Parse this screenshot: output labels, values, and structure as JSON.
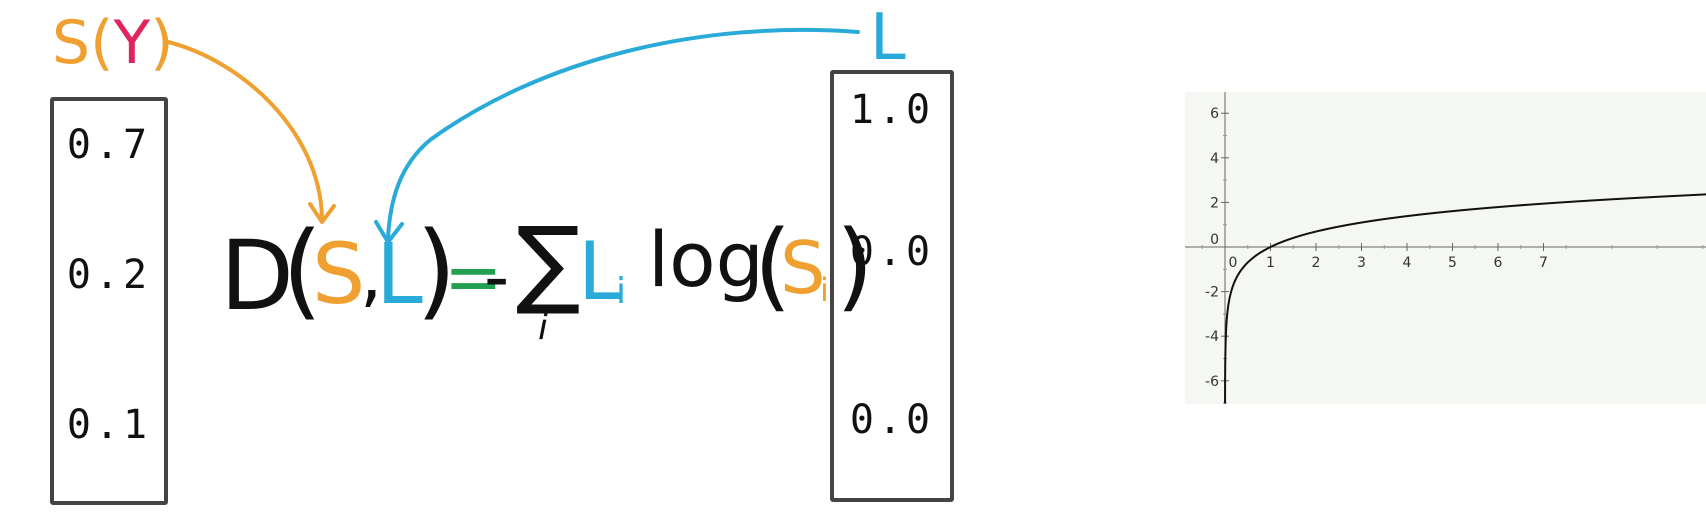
{
  "score_label": {
    "s": "S(",
    "y": "Y",
    "close": ")"
  },
  "label_label": "L",
  "score_values": [
    "0.7",
    "0.2",
    "0.1"
  ],
  "label_values": [
    "1.0",
    "0.0",
    "0.0"
  ],
  "formula": {
    "D": "D",
    "open": "(",
    "S": "S",
    "comma": ",",
    "L": "L",
    "close": ")",
    "equals": "=",
    "minus": "-",
    "sum": "∑",
    "sum_index": "i",
    "Li": "L",
    "Li_sub": "i",
    "log": "log",
    "log_open": "(",
    "Si": "S",
    "Si_sub": "i",
    "log_close": ")"
  },
  "colors": {
    "score": "#f0a030",
    "label": "#2aaad8",
    "y": "#e0245e",
    "equals": "#22a050",
    "ink": "#111111"
  },
  "chart_data": {
    "type": "line",
    "function": "ln(x)",
    "series": [
      {
        "x": [
          0.001,
          0.05,
          0.1,
          0.2,
          0.5,
          1,
          1.5,
          2,
          3,
          4,
          5,
          6,
          7,
          8
        ],
        "y": [
          -6.91,
          -3.0,
          -2.3,
          -1.61,
          -0.69,
          0,
          0.41,
          0.69,
          1.1,
          1.39,
          1.61,
          1.79,
          1.95,
          2.08
        ]
      }
    ],
    "xticks": [
      "0",
      "1",
      "2",
      "3",
      "4",
      "5",
      "6",
      "7"
    ],
    "yticks": [
      "6",
      "4",
      "2",
      "0",
      "-2",
      "-4",
      "-6"
    ],
    "xlim": [
      -0.8,
      10.5
    ],
    "ylim": [
      -7,
      7
    ],
    "grid": false
  }
}
